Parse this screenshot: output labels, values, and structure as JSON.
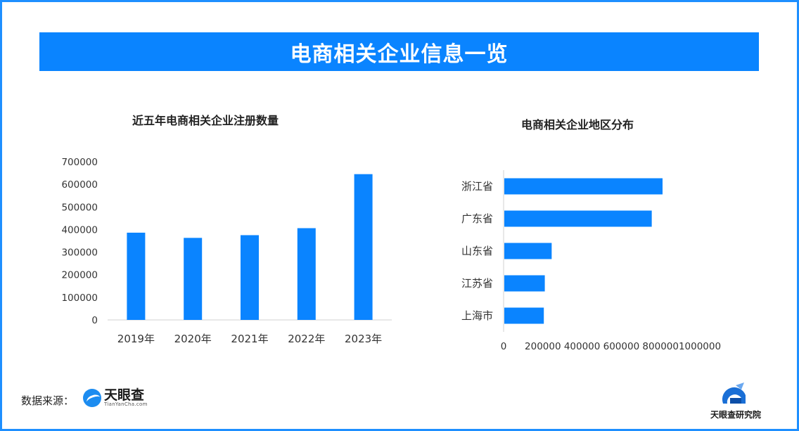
{
  "header": {
    "title": "电商相关企业信息一览"
  },
  "source": {
    "label": "数据来源：",
    "logo_cn": "天眼查",
    "logo_en": "TianYanCha.com"
  },
  "institute": {
    "name": "天眼查研究院"
  },
  "colors": {
    "bar": "#0a84ff",
    "banner": "#0a84ff",
    "border": "#1e8fff"
  },
  "chart_data": [
    {
      "type": "bar",
      "title": "近五年电商相关企业注册数量",
      "categories": [
        "2019年",
        "2020年",
        "2021年",
        "2022年",
        "2023年"
      ],
      "values": [
        386000,
        363000,
        375000,
        406000,
        645000
      ],
      "yticks": [
        "0",
        "100000",
        "200000",
        "300000",
        "400000",
        "500000",
        "600000",
        "700000"
      ],
      "ylim": [
        0,
        700000
      ],
      "grid": false
    },
    {
      "type": "bar",
      "orientation": "horizontal",
      "title": "电商相关企业地区分布",
      "categories": [
        "浙江省",
        "广东省",
        "山东省",
        "江苏省",
        "上海市"
      ],
      "values": [
        810000,
        755000,
        245000,
        210000,
        205000
      ],
      "xticks": [
        "0",
        "200000",
        "400000",
        "600000",
        "800000",
        "1000000"
      ],
      "xlim": [
        0,
        1000000
      ],
      "grid": false
    }
  ]
}
